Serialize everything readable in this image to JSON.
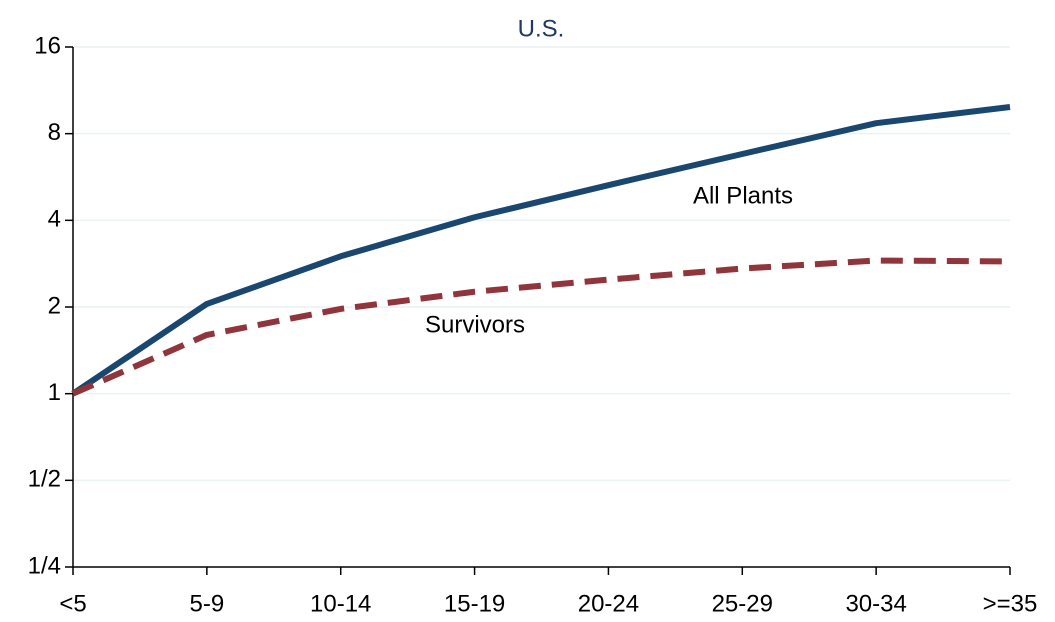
{
  "chart_data": {
    "type": "line",
    "title": "U.S.",
    "categories": [
      "<5",
      "5-9",
      "10-14",
      "15-19",
      "20-24",
      "25-29",
      "30-34",
      ">=35"
    ],
    "series": [
      {
        "name": "All Plants",
        "color": "#1a476f",
        "dash": false,
        "values": [
          1,
          2.05,
          3.0,
          4.1,
          5.3,
          6.8,
          8.7,
          9.9
        ]
      },
      {
        "name": "Survivors",
        "color": "#90353b",
        "dash": true,
        "values": [
          1,
          1.6,
          1.97,
          2.26,
          2.49,
          2.72,
          2.9,
          2.88
        ]
      }
    ],
    "yscale": "log",
    "ylim": [
      0.25,
      16
    ],
    "yticks": [
      {
        "value": 0.25,
        "label": "1/4"
      },
      {
        "value": 0.5,
        "label": "1/2"
      },
      1,
      2,
      4,
      8,
      16
    ],
    "grid": true
  }
}
